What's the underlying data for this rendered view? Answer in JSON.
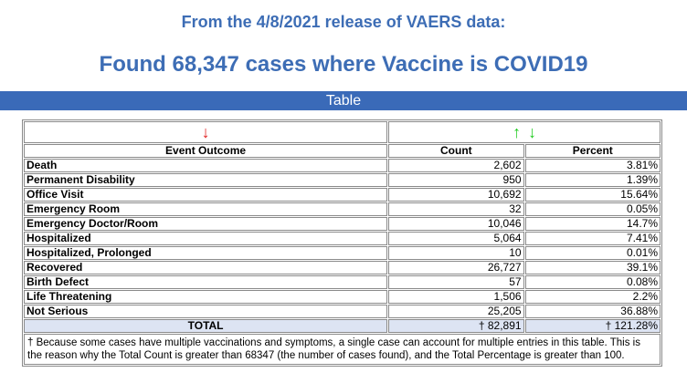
{
  "header": {
    "release_line": "From the 4/8/2021 release of VAERS data:",
    "found_line": "Found 68,347 cases where Vaccine is COVID19"
  },
  "section_bar": {
    "label": "Table"
  },
  "table": {
    "sort_icons": {
      "event_outcome": "arrow-down-icon",
      "count": [
        "arrow-up-icon",
        "arrow-down-icon"
      ]
    },
    "colors": {
      "header_blue": "#3d6db5",
      "bar_blue": "#3a6ab8",
      "arrow_red": "#e02020",
      "arrow_green": "#22cc22",
      "total_row_bg": "#dde4f3"
    },
    "columns": {
      "event_outcome": "Event Outcome",
      "count": "Count",
      "percent": "Percent"
    },
    "rows": [
      {
        "outcome": "Death",
        "count": "2,602",
        "percent": "3.81%"
      },
      {
        "outcome": "Permanent Disability",
        "count": "950",
        "percent": "1.39%"
      },
      {
        "outcome": "Office Visit",
        "count": "10,692",
        "percent": "15.64%"
      },
      {
        "outcome": "Emergency Room",
        "count": "32",
        "percent": "0.05%"
      },
      {
        "outcome": "Emergency Doctor/Room",
        "count": "10,046",
        "percent": "14.7%"
      },
      {
        "outcome": "Hospitalized",
        "count": "5,064",
        "percent": "7.41%"
      },
      {
        "outcome": "Hospitalized, Prolonged",
        "count": "10",
        "percent": "0.01%"
      },
      {
        "outcome": "Recovered",
        "count": "26,727",
        "percent": "39.1%"
      },
      {
        "outcome": "Birth Defect",
        "count": "57",
        "percent": "0.08%"
      },
      {
        "outcome": "Life Threatening",
        "count": "1,506",
        "percent": "2.2%"
      },
      {
        "outcome": "Not Serious",
        "count": "25,205",
        "percent": "36.88%"
      }
    ],
    "total": {
      "label": "TOTAL",
      "count": "† 82,891",
      "percent": "† 121.28%"
    },
    "footnote": "† Because some cases have multiple vaccinations and symptoms, a single case can account for multiple entries in this table. This is the reason why the Total Count is greater than 68347 (the number of cases found), and the Total Percentage is greater than 100."
  }
}
